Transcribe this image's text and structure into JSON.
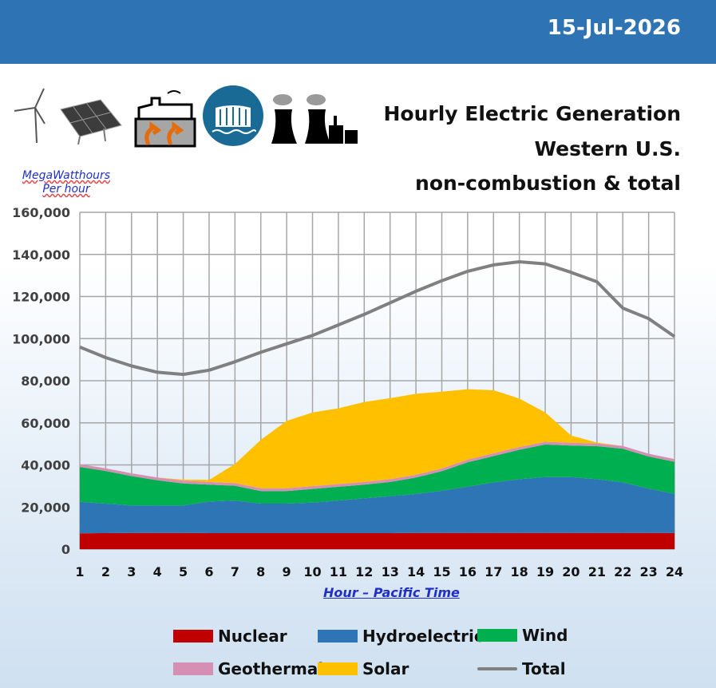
{
  "header": {
    "date": "15-Jul-2026"
  },
  "title": {
    "line1": "Hourly Electric Generation",
    "line2": "Western U.S.",
    "line3": "non-combustion & total"
  },
  "icons": [
    "wind-turbine-icon",
    "solar-panel-icon",
    "geothermal-plant-icon",
    "hydro-dam-icon",
    "nuclear-plant-icon"
  ],
  "colors": {
    "nuclear": "#c00000",
    "hydro": "#2e75b6",
    "wind": "#00b050",
    "geothermal": "#d48fb3",
    "solar": "#ffc000",
    "total": "#808080",
    "header": "#2e74b5"
  },
  "chart_data": {
    "type": "area",
    "ylabel": "MegaWatthours Per hour",
    "xlabel": "Hour – Pacific Time",
    "ylim": [
      0,
      160000
    ],
    "ytick_labels": [
      "0",
      "20,000",
      "40,000",
      "60,000",
      "80,000",
      "100,000",
      "120,000",
      "140,000",
      "160,000"
    ],
    "x": [
      1,
      2,
      3,
      4,
      5,
      6,
      7,
      8,
      9,
      10,
      11,
      12,
      13,
      14,
      15,
      16,
      17,
      18,
      19,
      20,
      21,
      22,
      23,
      24
    ],
    "stacked": true,
    "grid": true,
    "legend_position": "bottom",
    "series": [
      {
        "name": "Nuclear",
        "key": "nuclear",
        "kind": "area",
        "values": [
          7500,
          7600,
          7700,
          7700,
          7700,
          7600,
          7600,
          7600,
          7600,
          7600,
          7600,
          7600,
          7600,
          7700,
          7700,
          7700,
          7700,
          7700,
          7700,
          7700,
          7700,
          7700,
          7700,
          7700
        ]
      },
      {
        "name": "Hydroelectric",
        "key": "hydro",
        "kind": "area",
        "values": [
          15000,
          14000,
          13000,
          13000,
          13000,
          15000,
          15500,
          14000,
          14000,
          14500,
          15500,
          16500,
          17500,
          18500,
          20000,
          22000,
          24000,
          25500,
          26500,
          26500,
          25500,
          24000,
          21000,
          18500
        ]
      },
      {
        "name": "Wind",
        "key": "wind",
        "kind": "area",
        "values": [
          16500,
          15500,
          14000,
          12000,
          10500,
          8000,
          7000,
          6000,
          6000,
          6500,
          6500,
          6500,
          6800,
          7800,
          9300,
          11500,
          12500,
          14000,
          15500,
          15000,
          15700,
          16000,
          15300,
          15300
        ]
      },
      {
        "name": "Geothermal",
        "key": "geothermal",
        "kind": "area",
        "values": [
          1300,
          1300,
          1300,
          1300,
          1300,
          1300,
          1300,
          1300,
          1300,
          1300,
          1300,
          1300,
          1300,
          1300,
          1300,
          1300,
          1300,
          1300,
          1300,
          1300,
          1300,
          1300,
          1300,
          1300
        ]
      },
      {
        "name": "Solar",
        "key": "solar",
        "kind": "area",
        "values": [
          0,
          0,
          0,
          0,
          500,
          1000,
          9000,
          23000,
          32000,
          35000,
          36000,
          38000,
          38500,
          38500,
          36500,
          33500,
          30000,
          23000,
          14000,
          3500,
          400,
          0,
          0,
          0
        ]
      },
      {
        "name": "Total",
        "key": "total",
        "kind": "line",
        "values": [
          96000,
          91000,
          87000,
          84000,
          83000,
          85000,
          89000,
          93500,
          97500,
          101500,
          106500,
          111500,
          117000,
          122500,
          127500,
          132000,
          135000,
          136500,
          135500,
          131500,
          127000,
          114500,
          109500,
          101000
        ]
      }
    ]
  }
}
